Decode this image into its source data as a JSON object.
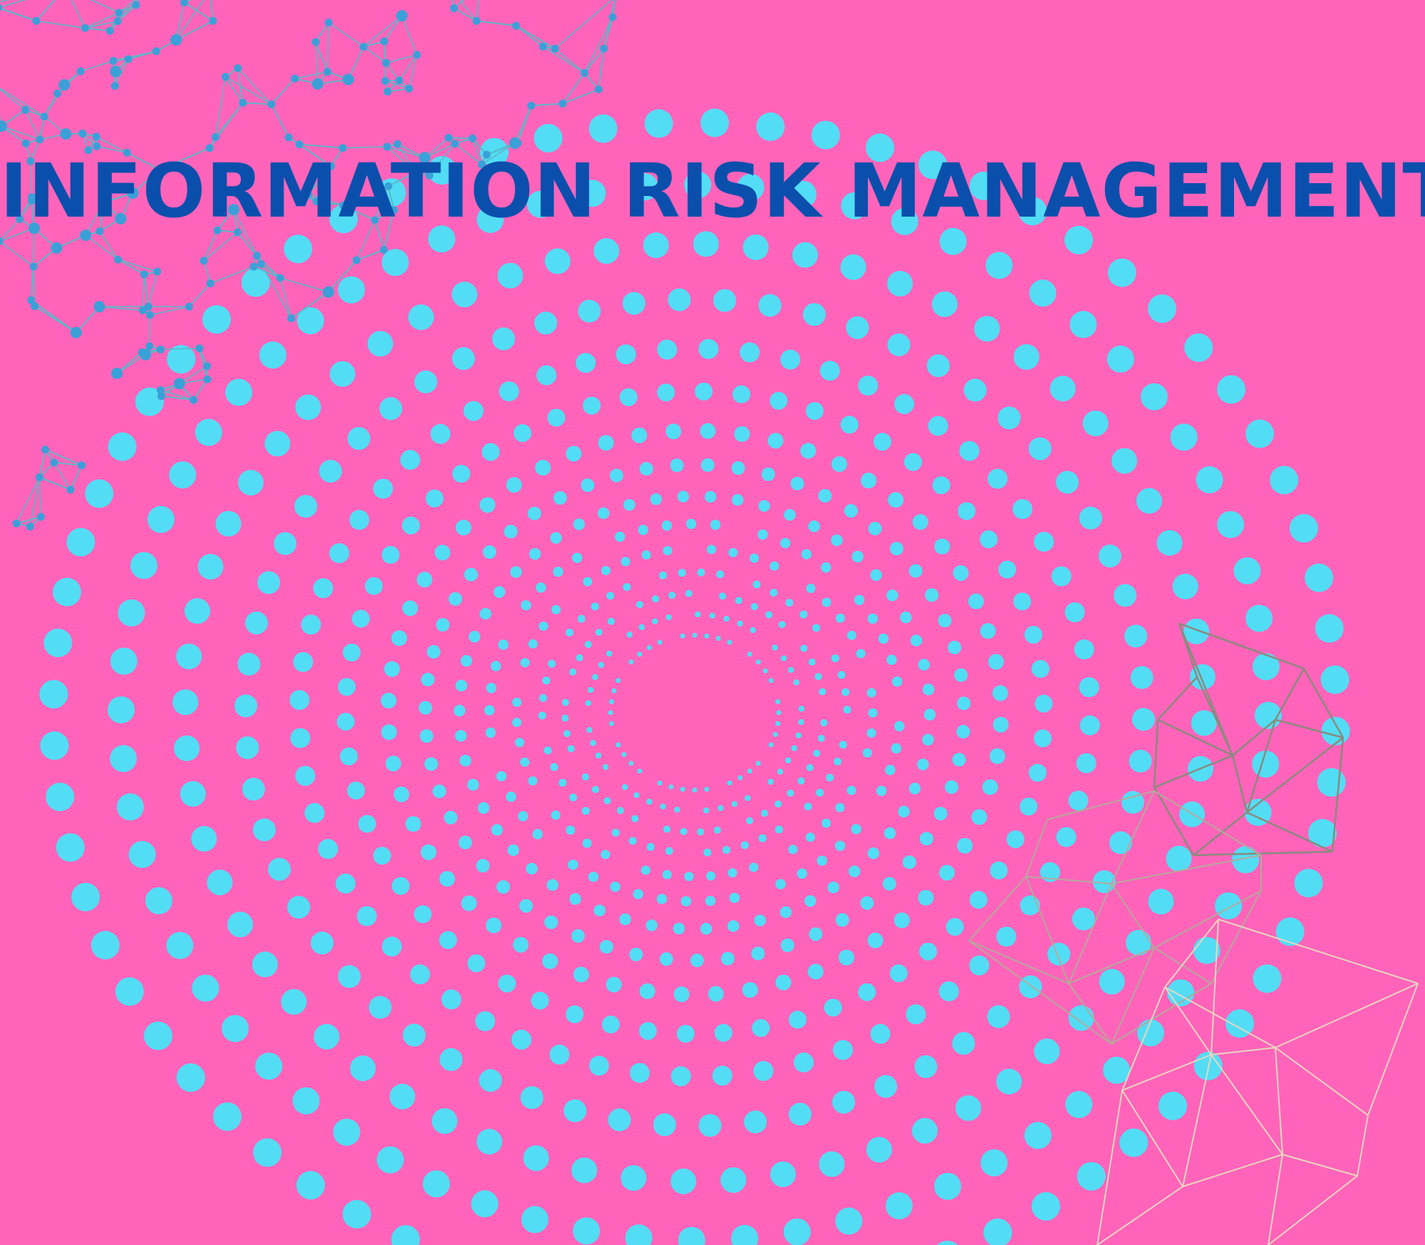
{
  "poster": {
    "title": "INFORMATION RISK MANAGEMENT"
  },
  "colors": {
    "background": "#ff64ba",
    "title": "#0b4fad",
    "dots": "#52ddf5",
    "network_nodes": "#3aa0d8",
    "network_lines": "#5bb8c9",
    "mesh_dark": "#8a8a7e",
    "mesh_mid": "#b4a99c",
    "mesh_light": "#e6d6c0"
  },
  "icons": {
    "dot_spiral": "concentric-dot-spiral",
    "network": "node-network-graphic",
    "mesh": "polygon-wireframe-graphic"
  }
}
